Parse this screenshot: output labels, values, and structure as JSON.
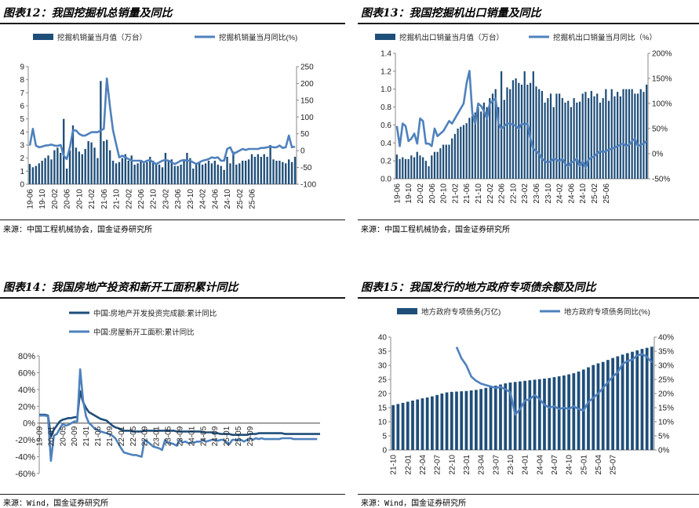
{
  "colors": {
    "bar": "#1f4e79",
    "line_light": "#4f81bd",
    "dark": "#1f4e79"
  },
  "panels": [
    {
      "title": "图表12：我国挖掘机总销量及同比",
      "source": "来源：中国工程机械协会，国金证券研究所"
    },
    {
      "title": "图表13：我国挖掘机出口销量及同比",
      "source": "来源：中国工程机械协会，国金证券研究所"
    },
    {
      "title": "图表14：我国房地产投资和新开工面积累计同比",
      "source": "来源：Wind，国金证券研究所"
    },
    {
      "title": "图表15：我国发行的地方政府专项债余额及同比",
      "source": "来源：Wind，国金证券研究所"
    }
  ],
  "chart_data": [
    {
      "type": "bar+line",
      "title": "我国挖掘机总销量及同比",
      "legend": [
        "挖掘机销量当月值（万台）",
        "挖掘机销量当月同比(%)"
      ],
      "x_start": "2019-06",
      "x_end": "2025-09",
      "xticks": [
        "19-06",
        "19-10",
        "20-02",
        "20-06",
        "20-10",
        "21-02",
        "21-06",
        "21-10",
        "22-02",
        "22-06",
        "22-10",
        "23-02",
        "23-06",
        "23-10",
        "24-02",
        "24-06",
        "24-10",
        "25-02",
        "25-06"
      ],
      "ylim_left": [
        0,
        9
      ],
      "yticks_left": [
        "0",
        "1",
        "2",
        "3",
        "4",
        "5",
        "6",
        "7",
        "8",
        "9"
      ],
      "ylim_right": [
        -100,
        250
      ],
      "yticks_right": [
        "-100",
        "-50",
        "0",
        "50",
        "100",
        "150",
        "200",
        "250"
      ],
      "bars": [
        1.55,
        1.3,
        1.4,
        1.6,
        1.8,
        2.0,
        2.2,
        1.9,
        2.6,
        2.8,
        2.4,
        5.0,
        1.2,
        2.6,
        4.5,
        2.8,
        2.5,
        2.3,
        2.7,
        3.3,
        3.2,
        2.8,
        2.0,
        7.9,
        3.3,
        3.4,
        2.6,
        1.8,
        1.6,
        1.7,
        2.0,
        2.3,
        1.8,
        2.2,
        1.5,
        1.6,
        1.8,
        1.6,
        1.7,
        2.1,
        1.8,
        1.6,
        1.5,
        1.3,
        2.4,
        1.8,
        1.9,
        1.4,
        1.4,
        1.5,
        1.8,
        2.4,
        2.0,
        1.2,
        1.5,
        1.7,
        1.5,
        1.6,
        1.8,
        1.6,
        1.8,
        1.5,
        1.4,
        1.1,
        2.1,
        1.6,
        2.5,
        1.5,
        1.6,
        1.8,
        1.8,
        1.9,
        2.3,
        2.1,
        2.3,
        2.1,
        2.3,
        2.1,
        3.0,
        1.9,
        1.8,
        1.8,
        1.7,
        1.6,
        1.9,
        1.7,
        2.1
      ],
      "line": [
        15,
        65,
        15,
        10,
        12,
        15,
        16,
        18,
        15,
        14,
        17,
        -15,
        -25,
        10,
        60,
        60,
        50,
        45,
        45,
        50,
        55,
        55,
        55,
        60,
        65,
        215,
        130,
        60,
        20,
        -20,
        -15,
        -20,
        -25,
        -30,
        -30,
        -30,
        -30,
        -35,
        -30,
        -28,
        -35,
        -40,
        -35,
        -30,
        -28,
        -30,
        -35,
        -40,
        -35,
        -30,
        -28,
        -30,
        -30,
        -35,
        -40,
        -35,
        -30,
        -28,
        -25,
        -20,
        -22,
        -20,
        -30,
        -30,
        5,
        10,
        -10,
        -5,
        0,
        5,
        2,
        5,
        5,
        5,
        5,
        8,
        8,
        10,
        12,
        10,
        10,
        15,
        8,
        10,
        45,
        10,
        12
      ]
    },
    {
      "type": "bar+line",
      "title": "我国挖掘机出口销量及同比",
      "legend": [
        "挖掘机出口销量当月值（万台）",
        "挖掘机出口销量当月同比（%）"
      ],
      "x_start": "2019-06",
      "x_end": "2025-09",
      "xticks": [
        "19-06",
        "19-10",
        "20-02",
        "20-06",
        "20-10",
        "21-02",
        "21-06",
        "21-10",
        "22-02",
        "22-06",
        "22-10",
        "23-02",
        "23-06",
        "23-10",
        "24-02",
        "24-06",
        "24-10",
        "25-02",
        "25-06"
      ],
      "ylim_left": [
        0,
        1.4
      ],
      "yticks_left": [
        "0.0",
        "0.2",
        "0.4",
        "0.6",
        "0.8",
        "1.0",
        "1.2",
        "1.4"
      ],
      "ylim_right": [
        -50,
        200
      ],
      "yticks_right": [
        "-50%",
        "0%",
        "50%",
        "100%",
        "150%",
        "200%"
      ],
      "bars": [
        0.27,
        0.22,
        0.24,
        0.22,
        0.22,
        0.26,
        0.24,
        0.3,
        0.26,
        0.24,
        0.2,
        0.14,
        0.26,
        0.3,
        0.3,
        0.34,
        0.38,
        0.38,
        0.38,
        0.45,
        0.5,
        0.56,
        0.58,
        0.6,
        0.62,
        0.68,
        0.7,
        0.74,
        0.8,
        0.75,
        0.85,
        0.8,
        0.9,
        0.95,
        1.0,
        0.8,
        1.2,
        0.88,
        1.02,
        1.0,
        1.1,
        1.12,
        1.07,
        1.05,
        1.2,
        1.05,
        1.07,
        1.2,
        1.03,
        1.0,
        0.98,
        0.85,
        0.9,
        0.95,
        0.8,
        0.95,
        0.95,
        0.9,
        0.85,
        0.87,
        0.8,
        0.9,
        0.85,
        0.86,
        0.95,
        0.97,
        0.9,
        0.98,
        0.92,
        0.95,
        0.85,
        0.9,
        1.0,
        0.87,
        1.0,
        0.92,
        0.97,
        0.92,
        1.0,
        1.0,
        1.0,
        1.0,
        0.95,
        0.95,
        1.0,
        0.97,
        1.05
      ],
      "line": [
        55,
        15,
        60,
        55,
        25,
        30,
        40,
        20,
        70,
        65,
        20,
        20,
        15,
        50,
        35,
        40,
        45,
        55,
        65,
        60,
        70,
        80,
        90,
        100,
        140,
        165,
        80,
        60,
        100,
        95,
        85,
        70,
        100,
        105,
        110,
        60,
        50,
        55,
        60,
        60,
        58,
        55,
        50,
        60,
        58,
        60,
        30,
        10,
        5,
        0,
        -10,
        -15,
        -18,
        -15,
        -10,
        -12,
        -15,
        -10,
        -20,
        -25,
        -18,
        -15,
        -10,
        -25,
        -15,
        -28,
        -12,
        -8,
        -5,
        0,
        5,
        3,
        5,
        8,
        10,
        12,
        15,
        18,
        20,
        15,
        18,
        25,
        30,
        15,
        18,
        20,
        25
      ]
    },
    {
      "type": "line",
      "title": "我国房地产投资和新开工面积累计同比",
      "legend": [
        "中国:房地产开发投资完成额:累计同比",
        "中国:房屋新开工面积:累计同比"
      ],
      "x_start": "2019-09",
      "x_end": "2025-09",
      "xticks": [
        "19-09",
        "20-01",
        "20-05",
        "20-09",
        "21-01",
        "21-05",
        "21-09",
        "22-01",
        "22-05",
        "22-09",
        "23-01",
        "23-05",
        "23-09",
        "24-01",
        "24-05",
        "24-09",
        "25-01",
        "25-05",
        "25-09"
      ],
      "ylim": [
        -60,
        80
      ],
      "yticks": [
        "-60%",
        "-40%",
        "-20%",
        "0%",
        "20%",
        "40%",
        "60%",
        "80%"
      ],
      "series": [
        {
          "name": "中国:房地产开发投资完成额:累计同比",
          "values": [
            10,
            10,
            10,
            9,
            -16,
            -8,
            -3,
            2,
            4,
            5,
            6,
            6,
            7,
            7,
            38,
            25,
            18,
            13,
            11,
            9,
            7,
            5,
            4,
            3,
            0,
            -3,
            -5,
            -6,
            -8,
            -9,
            -9,
            -9,
            -10,
            -10,
            -10,
            -10,
            -9,
            -9,
            -9,
            -9,
            -9,
            -9,
            -9,
            -9,
            -9,
            -9,
            -9,
            -10,
            -10,
            -10,
            -10,
            -10,
            -10,
            -10,
            -10,
            -10,
            -11,
            -11,
            -11,
            -11,
            -12,
            -12,
            -13,
            -13,
            -13,
            -13,
            -14,
            -14,
            -14,
            -14,
            -14,
            -14,
            -13,
            -13,
            -13,
            -12,
            -12,
            -12,
            -12,
            -12,
            -12,
            -12,
            -12,
            -12,
            -13,
            -13,
            -13,
            -13,
            -13,
            -13,
            -13,
            -13,
            -13,
            -13,
            -13,
            -13,
            -13
          ]
        },
        {
          "name": "中国:房屋新开工面积:累计同比",
          "values": [
            9,
            9,
            9,
            8,
            -45,
            -15,
            -13,
            -7,
            -1,
            -3,
            -2,
            0,
            2,
            2,
            64,
            27,
            8,
            0,
            -3,
            -7,
            -8,
            -10,
            -11,
            -12,
            -13,
            -15,
            -18,
            -24,
            -30,
            -35,
            -36,
            -37,
            -38,
            -38,
            -39,
            -40,
            -20,
            -22,
            -25,
            -28,
            -29,
            -30,
            -32,
            -20,
            -23,
            -24,
            -25,
            -27,
            -20,
            -23,
            -22,
            -24,
            -23,
            -23,
            -22,
            -22,
            -20,
            -22,
            -21,
            -20,
            -20,
            -21,
            -20,
            -20,
            -23,
            -25,
            -20,
            -20,
            -20,
            -20,
            -22,
            -20,
            -18,
            -20,
            -18,
            -19,
            -18,
            -19,
            -19,
            -19,
            -19,
            -19,
            -19,
            -18,
            -18,
            -18,
            -18,
            -19,
            -19,
            -19,
            -19,
            -19,
            -19,
            -19,
            -19,
            -19
          ]
        }
      ]
    },
    {
      "type": "bar+line",
      "title": "我国发行的地方政府专项债余额及同比",
      "legend": [
        "地方政府专项债务(万亿)",
        "地方政府专项债务同比(%)"
      ],
      "x_start": "2021-10",
      "x_end": "2025-09",
      "xticks": [
        "21-10",
        "22-01",
        "22-04",
        "22-07",
        "22-10",
        "23-01",
        "23-04",
        "23-07",
        "23-10",
        "24-01",
        "24-04",
        "24-07",
        "24-10",
        "25-01",
        "25-04",
        "25-07"
      ],
      "ylim_left": [
        0,
        40
      ],
      "yticks_left": [
        "0",
        "5",
        "10",
        "15",
        "20",
        "25",
        "30",
        "35",
        "40"
      ],
      "ylim_right": [
        0,
        40
      ],
      "yticks_right": [
        "0%",
        "5%",
        "10%",
        "15%",
        "20%",
        "25%",
        "30%",
        "35%",
        "40%"
      ],
      "bars": [
        15.9,
        16.3,
        16.7,
        17.1,
        17.5,
        17.9,
        18.3,
        18.6,
        19.0,
        19.5,
        20.0,
        20.4,
        20.6,
        20.7,
        20.8,
        20.9,
        21.1,
        21.3,
        21.6,
        22.0,
        22.4,
        22.8,
        23.2,
        23.6,
        23.9,
        24.1,
        24.3,
        24.5,
        24.7,
        24.9,
        25.1,
        25.3,
        25.5,
        25.8,
        26.1,
        26.4,
        26.8,
        27.2,
        27.8,
        28.5,
        29.3,
        30.1,
        30.7,
        31.2,
        31.9,
        32.6,
        33.2,
        33.8,
        34.3,
        34.8,
        35.3,
        35.8,
        36.2,
        36.6
      ],
      "line": [
        null,
        null,
        null,
        null,
        null,
        null,
        null,
        null,
        null,
        null,
        null,
        null,
        null,
        36.5,
        32.5,
        30.0,
        26.0,
        24.5,
        23.5,
        23.0,
        22.5,
        22.0,
        22.3,
        21.5,
        20.5,
        12.5,
        14.5,
        17.5,
        18.0,
        19.5,
        18.0,
        16.0,
        15.0,
        15.5,
        14.5,
        15.0,
        14.5,
        15.5,
        14.5,
        14.0,
        17.0,
        18.5,
        20.0,
        22.0,
        24.0,
        26.0,
        27.5,
        30.5,
        31.5,
        32.0,
        33.5,
        34.0,
        33.0,
        31.0
      ]
    }
  ]
}
